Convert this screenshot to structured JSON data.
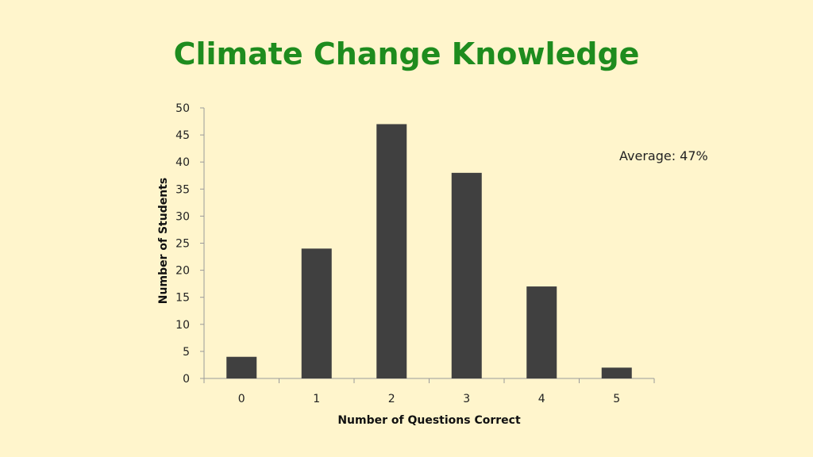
{
  "chart_data": {
    "type": "bar",
    "title": "Climate Change Knowledge",
    "xlabel": "Number of Questions Correct",
    "ylabel": "Number of Students",
    "categories": [
      "0",
      "1",
      "2",
      "3",
      "4",
      "5"
    ],
    "values": [
      4,
      24,
      47,
      38,
      17,
      2
    ],
    "ylim": [
      0,
      50
    ],
    "yticks": [
      "0",
      "5",
      "10",
      "15",
      "20",
      "25",
      "30",
      "35",
      "40",
      "45",
      "50"
    ],
    "annotation": "Average: 47%",
    "grid": false,
    "bar_color": "#404040",
    "title_color": "#1E8C1E",
    "background": "#FFF5CC"
  }
}
